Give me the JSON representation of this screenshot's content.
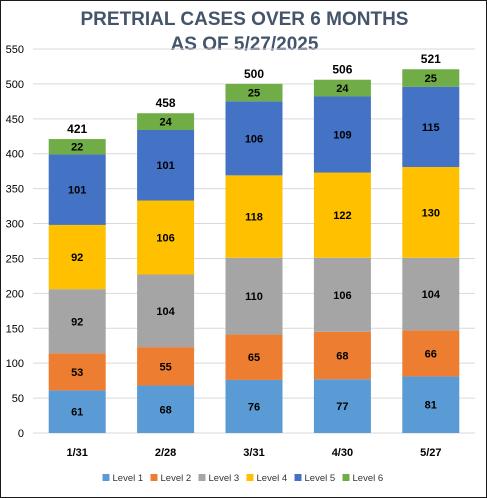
{
  "chart_data": {
    "type": "bar",
    "stacked": true,
    "title_lines": [
      "PRETRIAL CASES OVER 6 MONTHS",
      "AS OF 5/27/2025"
    ],
    "categories": [
      "1/31",
      "2/28",
      "3/31",
      "4/30",
      "5/27"
    ],
    "series": [
      {
        "name": "Level 1",
        "color": "#5b9bd5",
        "values": [
          61,
          68,
          76,
          77,
          81
        ]
      },
      {
        "name": "Level 2",
        "color": "#ed7d31",
        "values": [
          53,
          55,
          65,
          68,
          66
        ]
      },
      {
        "name": "Level 3",
        "color": "#a5a5a5",
        "values": [
          92,
          104,
          110,
          106,
          104
        ]
      },
      {
        "name": "Level 4",
        "color": "#ffc000",
        "values": [
          92,
          106,
          118,
          122,
          130
        ]
      },
      {
        "name": "Level 5",
        "color": "#4472c4",
        "values": [
          101,
          101,
          106,
          109,
          115
        ]
      },
      {
        "name": "Level 6",
        "color": "#70ad47",
        "values": [
          22,
          24,
          25,
          24,
          25
        ]
      }
    ],
    "totals": [
      421,
      458,
      500,
      506,
      521
    ],
    "ylim": [
      0,
      550
    ],
    "yticks": [
      0,
      50,
      100,
      150,
      200,
      250,
      300,
      350,
      400,
      450,
      500,
      550
    ],
    "grid": true,
    "legend_position": "bottom"
  }
}
